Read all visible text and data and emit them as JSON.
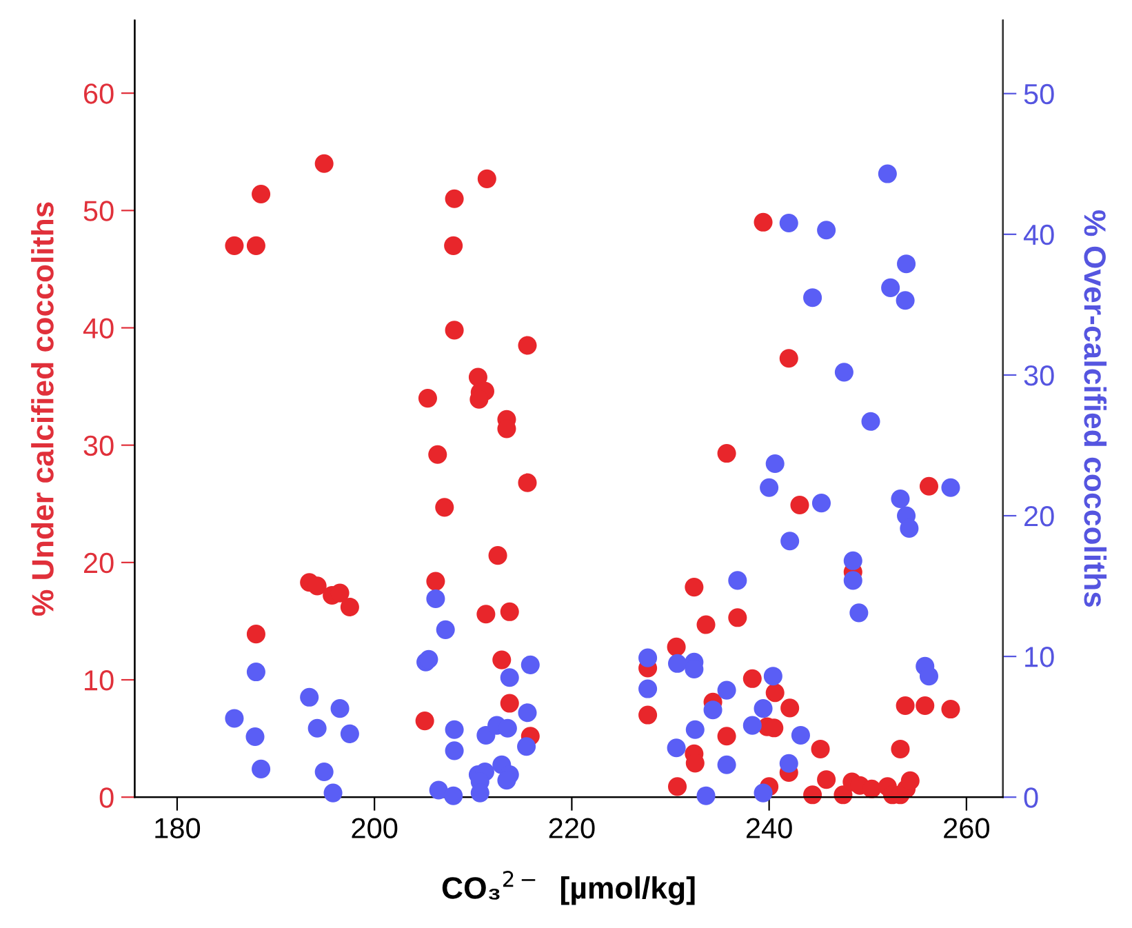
{
  "chart_data": {
    "type": "scatter",
    "xlabel": "CO₃$^{2−}$  [µmol/kg]",
    "ylabel": "% Under calcified coccoliths",
    "y2label": "% Over-calcified coccoliths",
    "xlim": [
      175.7,
      263.7
    ],
    "xticks": [
      180,
      200,
      220,
      240,
      260
    ],
    "ylim": [
      0,
      66.2
    ],
    "yticks": [
      0,
      10,
      20,
      30,
      40,
      50,
      60
    ],
    "y2lim": [
      0,
      55.2
    ],
    "y2ticks": [
      0,
      10,
      20,
      30,
      40,
      50
    ],
    "marker": "circle",
    "grid": false,
    "legend": false,
    "series": [
      {
        "color": "#e8262b",
        "axis": "y",
        "x": [
          185.8,
          188.0,
          188.5,
          194.9,
          208.1,
          208.0,
          211.4,
          208.1,
          215.5,
          205.4,
          210.5,
          210.7,
          211.2,
          210.6,
          213.4,
          213.4,
          206.4,
          215.5,
          207.1,
          212.5,
          206.2,
          211.3,
          213.7,
          212.9,
          213.7,
          205.1,
          215.8,
          193.4,
          194.2,
          195.7,
          196.5,
          197.5,
          188.0,
          239.4,
          242.0,
          235.7,
          243.1,
          256.2,
          232.4,
          233.6,
          236.8,
          248.5,
          230.6,
          227.7,
          227.7,
          238.3,
          240.6,
          242.1,
          234.3,
          239.8,
          240.5,
          235.7,
          232.4,
          232.5,
          242.0,
          245.2,
          230.7,
          240.0,
          244.4,
          245.8,
          247.5,
          248.4,
          249.2,
          250.4,
          252.0,
          252.5,
          253.3,
          253.9,
          254.3,
          253.3,
          253.8,
          255.8,
          258.4
        ],
        "values": [
          47.0,
          47.0,
          51.4,
          54.0,
          51.0,
          47.0,
          52.7,
          39.8,
          38.5,
          34.0,
          35.8,
          34.5,
          34.6,
          33.9,
          32.2,
          31.4,
          29.2,
          26.8,
          24.7,
          20.6,
          18.4,
          15.6,
          15.8,
          11.7,
          8.0,
          6.5,
          5.2,
          18.3,
          18.0,
          17.2,
          17.4,
          16.2,
          13.9,
          49.0,
          37.4,
          29.3,
          24.9,
          26.5,
          17.9,
          14.7,
          15.3,
          19.2,
          12.8,
          11.0,
          7.0,
          10.1,
          8.9,
          7.6,
          8.1,
          6.0,
          5.9,
          5.2,
          3.7,
          2.9,
          2.1,
          4.1,
          0.9,
          0.9,
          0.2,
          1.5,
          0.2,
          1.3,
          1.0,
          0.7,
          0.9,
          0.2,
          0.2,
          0.7,
          1.4,
          4.1,
          7.8,
          7.8,
          7.5
        ]
      },
      {
        "color": "#5a5ef5",
        "axis": "y2",
        "x": [
          185.8,
          188.0,
          187.9,
          188.5,
          193.4,
          194.2,
          196.5,
          197.5,
          194.9,
          195.8,
          206.2,
          207.2,
          205.2,
          205.5,
          215.8,
          213.7,
          215.5,
          208.1,
          208.1,
          211.3,
          212.4,
          213.5,
          215.4,
          210.5,
          211.2,
          212.9,
          213.7,
          213.4,
          210.7,
          210.7,
          206.5,
          208.0,
          252.0,
          242.0,
          245.8,
          253.9,
          252.3,
          253.8,
          244.4,
          247.6,
          250.3,
          240.6,
          240.0,
          245.3,
          258.4,
          253.3,
          253.9,
          254.2,
          242.1,
          248.5,
          248.5,
          249.1,
          236.8,
          227.7,
          227.7,
          230.7,
          232.4,
          232.4,
          235.7,
          240.4,
          255.8,
          256.2,
          234.3,
          239.4,
          238.3,
          232.5,
          243.2,
          230.6,
          235.7,
          242.0,
          233.6,
          239.4
        ],
        "values": [
          5.6,
          8.9,
          4.3,
          2.0,
          7.1,
          4.9,
          6.3,
          4.5,
          1.8,
          0.3,
          14.1,
          11.9,
          9.6,
          9.8,
          9.4,
          8.5,
          6.0,
          4.8,
          3.3,
          4.4,
          5.1,
          4.9,
          3.6,
          1.6,
          1.8,
          2.3,
          1.6,
          1.2,
          1.1,
          0.3,
          0.5,
          0.1,
          44.3,
          40.8,
          40.3,
          37.9,
          36.2,
          35.3,
          35.5,
          30.2,
          26.7,
          23.7,
          22.0,
          20.9,
          22.0,
          21.2,
          20.0,
          19.1,
          18.2,
          16.8,
          15.4,
          13.1,
          15.4,
          9.9,
          7.7,
          9.5,
          9.6,
          9.1,
          7.6,
          8.6,
          9.3,
          8.6,
          6.2,
          6.3,
          5.1,
          4.8,
          4.4,
          3.5,
          2.3,
          2.4,
          0.1,
          0.3
        ]
      }
    ]
  }
}
